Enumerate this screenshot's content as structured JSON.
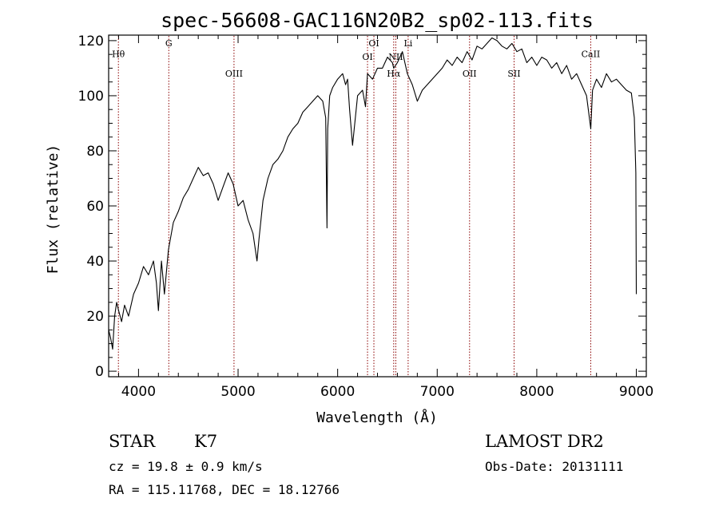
{
  "title": "spec-56608-GAC116N20B2_sp02-113.fits",
  "footer": {
    "object_type": "STAR",
    "subclass": "K7",
    "survey": "LAMOST DR2",
    "cz": "cz = 19.8 ± 0.9 km/s",
    "obs_date": "Obs-Date: 20131111",
    "radec": "RA = 115.11768, DEC =  18.12766"
  },
  "chart_data": {
    "type": "line",
    "title": "spec-56608-GAC116N20B2_sp02-113.fits",
    "xlabel": "Wavelength (Å)",
    "ylabel": "Flux (relative)",
    "xlim": [
      3700,
      9100
    ],
    "ylim": [
      -2,
      122
    ],
    "x_ticks": [
      4000,
      5000,
      6000,
      7000,
      8000,
      9000
    ],
    "y_ticks": [
      0,
      20,
      40,
      60,
      80,
      100,
      120
    ],
    "x_tick_labels": [
      "4000",
      "5000",
      "6000",
      "7000",
      "8000",
      "9000"
    ],
    "y_tick_labels": [
      "0",
      "20",
      "40",
      "60",
      "80",
      "100",
      "120"
    ],
    "line_color": "#000000",
    "marker_color": "#8b0000",
    "spectral_lines": [
      {
        "label": "Hθ",
        "wavelength": 3798,
        "label_y": 114
      },
      {
        "label": "G",
        "wavelength": 4304,
        "label_y": 118
      },
      {
        "label": "OIII",
        "wavelength": 4959,
        "label_y": 107
      },
      {
        "label": "OI",
        "wavelength": 6300,
        "label_y": 113
      },
      {
        "label": "OI",
        "wavelength": 6364,
        "label_y": 118
      },
      {
        "label": "Hα",
        "wavelength": 6563,
        "label_y": 107
      },
      {
        "label": "NII",
        "wavelength": 6584,
        "label_y": 113
      },
      {
        "label": "Li",
        "wavelength": 6708,
        "label_y": 118
      },
      {
        "label": "OII",
        "wavelength": 7325,
        "label_y": 107
      },
      {
        "label": "SII",
        "wavelength": 7772,
        "label_y": 107
      },
      {
        "label": "CaII",
        "wavelength": 8542,
        "label_y": 114
      }
    ],
    "series": [
      {
        "x": [
          3700,
          3720,
          3740,
          3760,
          3780,
          3800,
          3830,
          3860,
          3900,
          3950,
          4000,
          4050,
          4100,
          4150,
          4180,
          4200,
          4230,
          4260,
          4300,
          4350,
          4400,
          4450,
          4500,
          4550,
          4600,
          4650,
          4700,
          4750,
          4800,
          4850,
          4900,
          4950,
          5000,
          5050,
          5100,
          5150,
          5170,
          5190,
          5210,
          5250,
          5300,
          5350,
          5400,
          5450,
          5500,
          5550,
          5600,
          5650,
          5700,
          5750,
          5800,
          5850,
          5880,
          5893,
          5900,
          5920,
          5950,
          6000,
          6050,
          6080,
          6100,
          6120,
          6150,
          6200,
          6250,
          6280,
          6300,
          6350,
          6400,
          6450,
          6500,
          6550,
          6563,
          6600,
          6650,
          6700,
          6750,
          6800,
          6850,
          6900,
          6950,
          7000,
          7050,
          7100,
          7150,
          7200,
          7250,
          7300,
          7350,
          7400,
          7450,
          7500,
          7550,
          7600,
          7650,
          7700,
          7750,
          7800,
          7850,
          7900,
          7950,
          8000,
          8050,
          8100,
          8150,
          8200,
          8250,
          8300,
          8350,
          8400,
          8450,
          8500,
          8542,
          8560,
          8600,
          8650,
          8700,
          8750,
          8800,
          8850,
          8900,
          8950,
          8980,
          8995,
          9000
        ],
        "y": [
          15,
          12,
          8,
          20,
          25,
          22,
          18,
          24,
          20,
          28,
          32,
          38,
          35,
          40,
          32,
          22,
          40,
          28,
          44,
          54,
          58,
          63,
          66,
          70,
          74,
          71,
          72,
          68,
          62,
          67,
          72,
          68,
          60,
          62,
          55,
          50,
          45,
          40,
          48,
          62,
          70,
          75,
          77,
          80,
          85,
          88,
          90,
          94,
          96,
          98,
          100,
          98,
          92,
          52,
          88,
          100,
          103,
          106,
          108,
          104,
          106,
          95,
          82,
          100,
          102,
          96,
          108,
          106,
          110,
          110,
          114,
          112,
          110,
          112,
          116,
          108,
          104,
          98,
          102,
          104,
          106,
          108,
          110,
          113,
          111,
          114,
          112,
          116,
          113,
          118,
          117,
          119,
          121,
          120,
          118,
          117,
          119,
          116,
          117,
          112,
          114,
          111,
          114,
          113,
          110,
          112,
          108,
          111,
          106,
          108,
          104,
          100,
          88,
          102,
          106,
          103,
          108,
          105,
          106,
          104,
          102,
          101,
          92,
          72,
          28
        ]
      }
    ]
  }
}
